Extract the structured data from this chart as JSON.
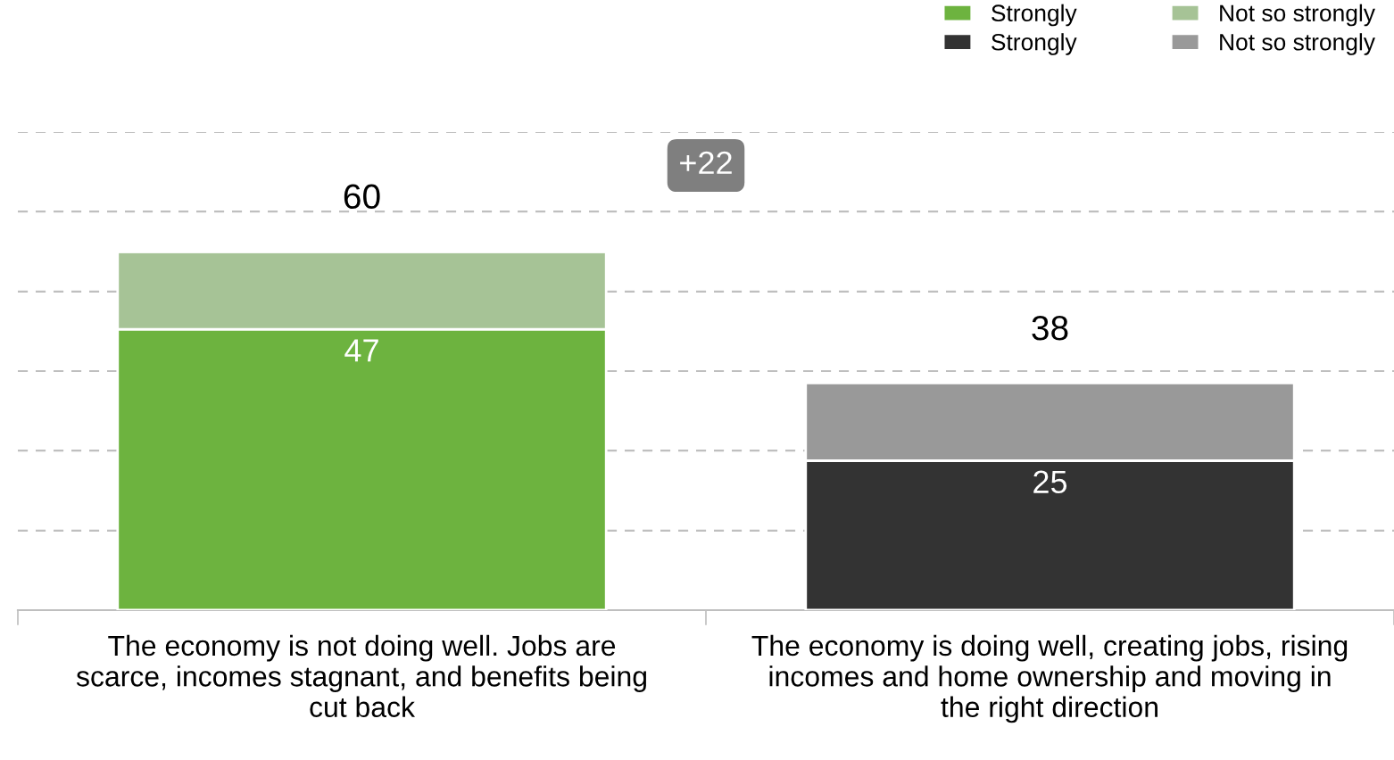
{
  "chart_data": {
    "type": "bar",
    "stacked": true,
    "categories": [
      "The economy is not doing well. Jobs are\nscarce, incomes stagnant, and benefits being\ncut back",
      "The economy is doing well, creating jobs, rising\nincomes and home ownership and moving in\nthe right direction"
    ],
    "series": [
      {
        "name": "Strongly",
        "color": "#6db33f",
        "values": [
          47,
          null
        ],
        "value_labels": [
          "47",
          null
        ]
      },
      {
        "name": "Not so strongly",
        "color": "#a6c396",
        "values": [
          13,
          null
        ]
      },
      {
        "name": "Strongly",
        "color": "#333333",
        "values": [
          null,
          25
        ],
        "value_labels": [
          null,
          "25"
        ]
      },
      {
        "name": "Not so strongly",
        "color": "#999999",
        "values": [
          null,
          13
        ]
      }
    ],
    "totals": [
      "60",
      "38"
    ],
    "annotations": [
      "+22"
    ],
    "ylim": [
      0,
      80
    ],
    "yticks": [
      {
        "value": 13.3,
        "label": null
      },
      {
        "value": 26.7,
        "label": null
      },
      {
        "value": 40,
        "label": null
      },
      {
        "value": 53.3,
        "label": null
      },
      {
        "value": 66.7,
        "label": null
      },
      {
        "value": 80,
        "label": null
      }
    ],
    "grid": "y",
    "legend": "top right",
    "tick_labels": "x"
  }
}
